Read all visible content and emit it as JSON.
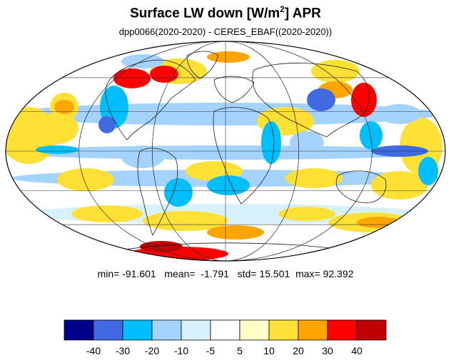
{
  "title": {
    "main": "Surface LW down [W/m",
    "superscript": "2",
    "suffix": "]  APR"
  },
  "subtitle": "dpp0066(2020-2020) - CERES_EBAF((2020-2020))",
  "stats": {
    "min_label": "min=",
    "min": "-91.601",
    "mean_label": "mean=",
    "mean": "-1.791",
    "std_label": "std=",
    "std": "15.501",
    "max_label": "max=",
    "max": "92.392"
  },
  "colorbar": {
    "colors": [
      "#00008b",
      "#4169e1",
      "#00bfff",
      "#a4d3ff",
      "#d7f1ff",
      "#ffffff",
      "#ffffc8",
      "#ffe135",
      "#ffa500",
      "#ff0000",
      "#c00000"
    ],
    "tick_labels": [
      "-40",
      "-30",
      "-20",
      "-10",
      "-5",
      "5",
      "10",
      "20",
      "30",
      "40"
    ]
  },
  "map": {
    "projection": "mollweide",
    "ocean_base": "#ffffff",
    "graticule": "on"
  }
}
